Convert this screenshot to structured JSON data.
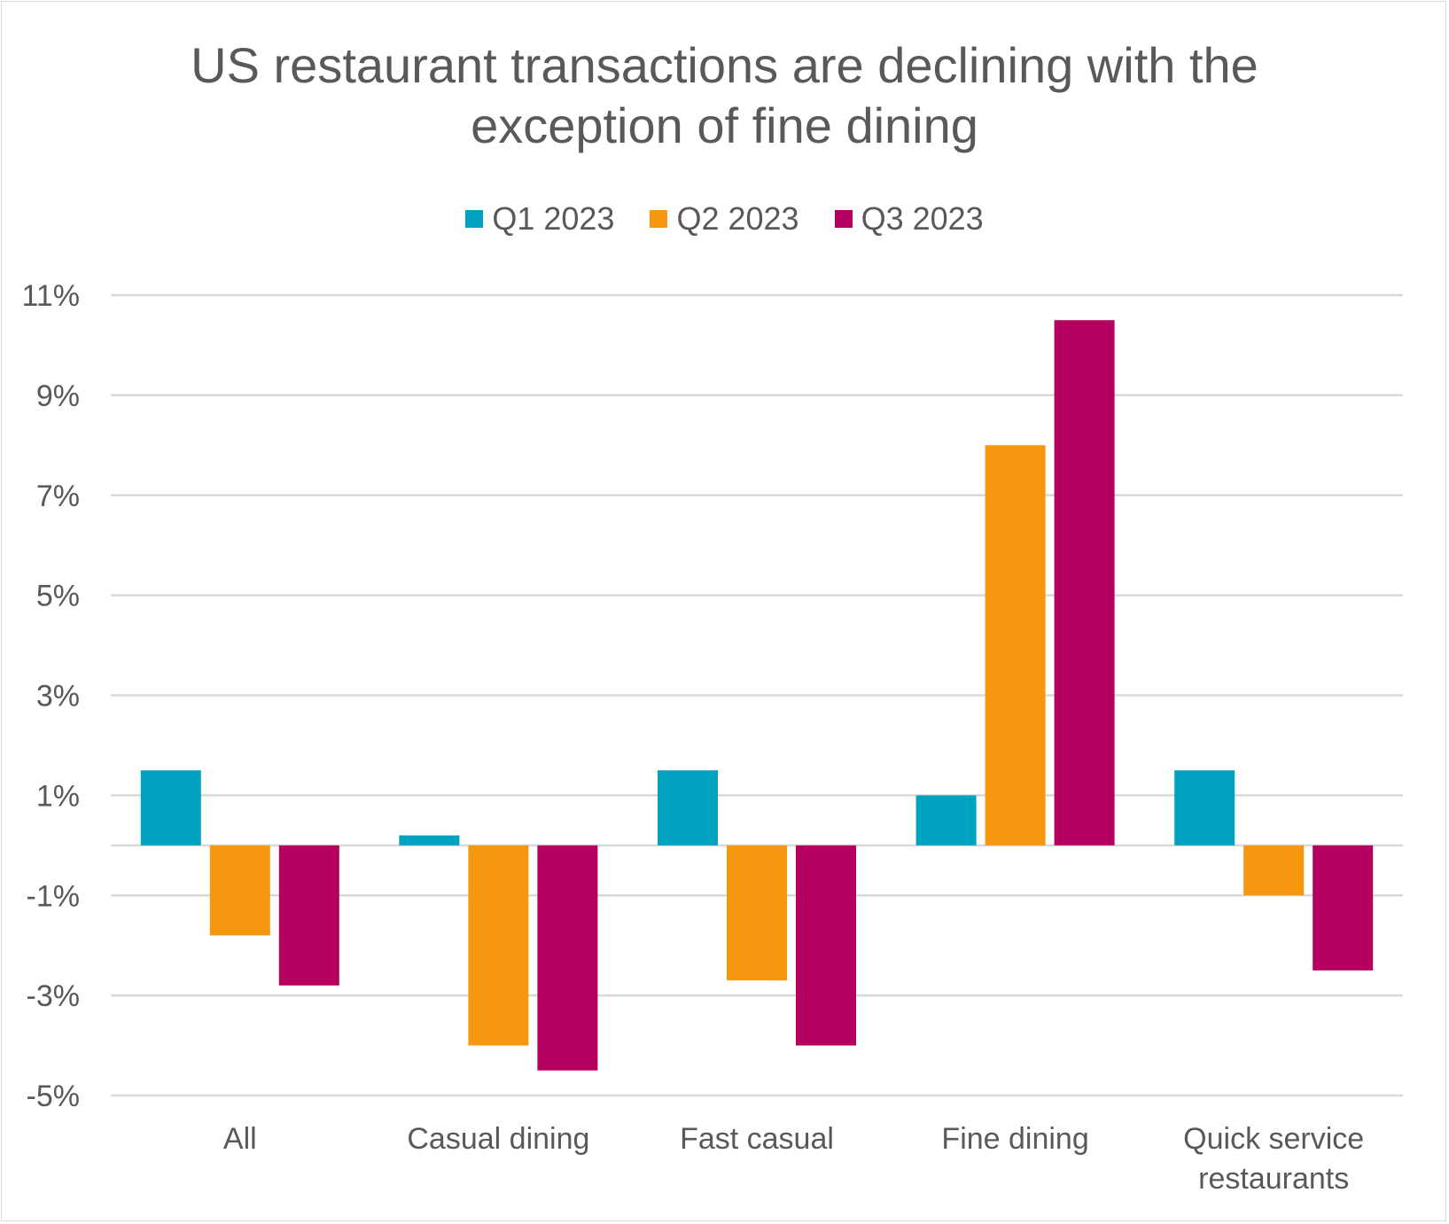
{
  "chart_data": {
    "type": "bar",
    "title": "US restaurant transactions are declining with the exception of fine dining",
    "title_lines": [
      "US restaurant transactions are declining with the",
      "exception of fine dining"
    ],
    "categories": [
      "All",
      "Casual dining",
      "Fast casual",
      "Fine dining",
      "Quick service restaurants"
    ],
    "category_lines": [
      [
        "All"
      ],
      [
        "Casual dining"
      ],
      [
        "Fast casual"
      ],
      [
        "Fine dining"
      ],
      [
        "Quick service",
        "restaurants"
      ]
    ],
    "series": [
      {
        "name": "Q1 2023",
        "color": "#00a3bf",
        "values": [
          1.5,
          0.2,
          1.5,
          1.0,
          1.5
        ]
      },
      {
        "name": "Q2 2023",
        "color": "#f5970f",
        "values": [
          -1.8,
          -4.0,
          -2.7,
          8.0,
          -1.0
        ]
      },
      {
        "name": "Q3 2023",
        "color": "#b5005f",
        "values": [
          -2.8,
          -4.5,
          -4.0,
          10.5,
          -2.5
        ]
      }
    ],
    "ylim": [
      -5,
      11
    ],
    "yticks": [
      -5,
      -3,
      -1,
      1,
      3,
      5,
      7,
      9,
      11
    ],
    "ytick_labels": [
      "-5%",
      "-3%",
      "-1%",
      "1%",
      "3%",
      "5%",
      "7%",
      "9%",
      "11%"
    ],
    "grid": true,
    "legend_position": "top-center",
    "xlabel": "",
    "ylabel": ""
  }
}
